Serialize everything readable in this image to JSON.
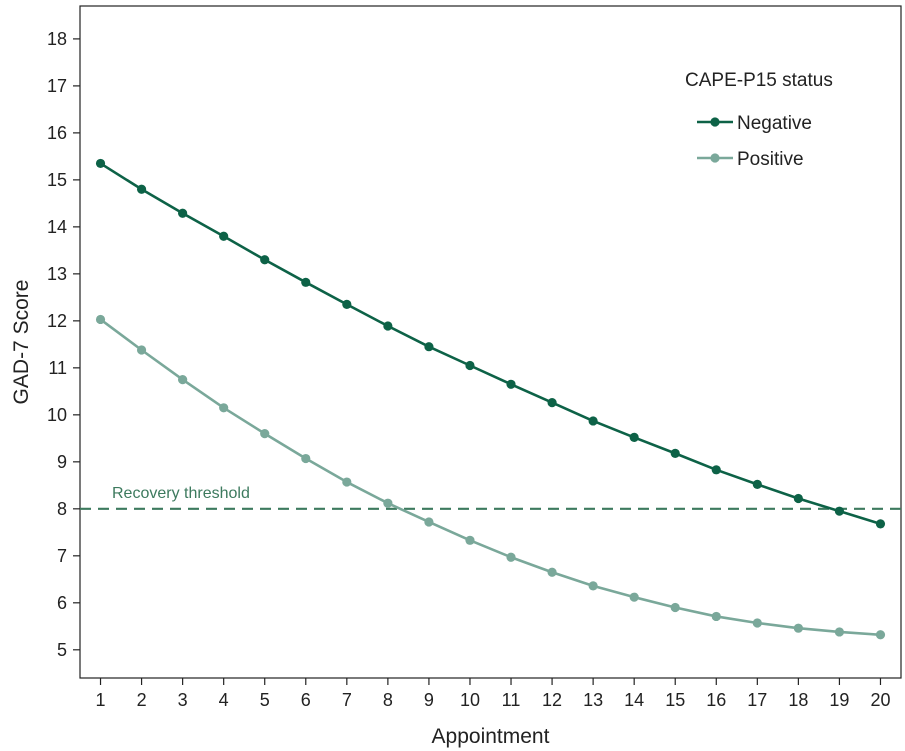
{
  "chart_data": {
    "type": "line",
    "title": "",
    "xlabel": "Appointment",
    "ylabel": "GAD-7 Score",
    "x": [
      1,
      2,
      3,
      4,
      5,
      6,
      7,
      8,
      9,
      10,
      11,
      12,
      13,
      14,
      15,
      16,
      17,
      18,
      19,
      20
    ],
    "xlim": [
      0.5,
      20.5
    ],
    "ylim": [
      4.4,
      18.7
    ],
    "yticks": [
      5,
      6,
      7,
      8,
      9,
      10,
      11,
      12,
      13,
      14,
      15,
      16,
      17,
      18
    ],
    "grid": false,
    "legend": {
      "title": "CAPE-P15 status",
      "placement": "top-right"
    },
    "series": [
      {
        "name": "Negative",
        "color": "#0d6247",
        "values": [
          15.35,
          14.8,
          14.29,
          13.8,
          13.3,
          12.82,
          12.35,
          11.89,
          11.45,
          11.05,
          10.65,
          10.26,
          9.87,
          9.52,
          9.18,
          8.83,
          8.52,
          8.22,
          7.95,
          7.68
        ]
      },
      {
        "name": "Positive",
        "color": "#7aa89a",
        "values": [
          12.03,
          11.38,
          10.75,
          10.15,
          9.6,
          9.07,
          8.57,
          8.12,
          7.72,
          7.33,
          6.97,
          6.65,
          6.36,
          6.12,
          5.9,
          5.71,
          5.57,
          5.46,
          5.38,
          5.32
        ]
      }
    ],
    "annotations": [
      {
        "type": "hline",
        "y": 8,
        "label": "Recovery threshold",
        "style": "dashed",
        "color": "#3d7a5e"
      }
    ]
  }
}
